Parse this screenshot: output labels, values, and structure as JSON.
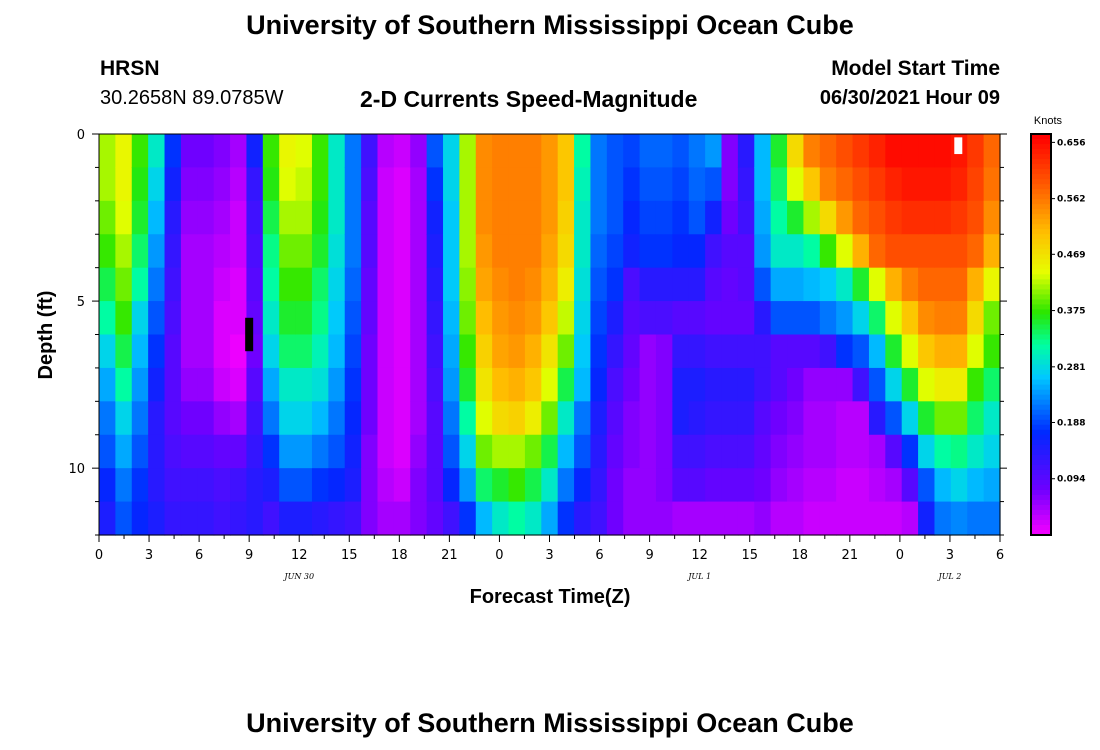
{
  "header": {
    "title": "University of Southern Mississippi Ocean Cube",
    "station": "HRSN",
    "coords": "30.2658N  89.0785W",
    "subtitle": "2-D Currents Speed-Magnitude",
    "model_label": "Model Start Time",
    "model_time": "06/30/2021 Hour 09"
  },
  "footer": {
    "title": "University of Southern Mississippi Ocean Cube"
  },
  "chart_data": {
    "type": "heatmap",
    "title": "2-D Currents Speed-Magnitude",
    "xlabel": "Forecast Time(Z)",
    "ylabel": "Depth (ft)",
    "x_hours": [
      0,
      54
    ],
    "x_tick_labels": [
      "0",
      "3",
      "6",
      "9",
      "12",
      "15",
      "18",
      "21",
      "0",
      "3",
      "6",
      "9",
      "12",
      "15",
      "18",
      "21",
      "0",
      "3",
      "6"
    ],
    "x_date_labels": [
      {
        "hour": 12,
        "text": "JUN 30"
      },
      {
        "hour": 36,
        "text": "JUL 1"
      },
      {
        "hour": 51,
        "text": "JUL 2"
      }
    ],
    "y_range_ft": [
      0,
      12
    ],
    "y_tick_labels": [
      "0",
      "5",
      "10"
    ],
    "colorbar": {
      "unit": "Knots",
      "min": 0.0,
      "max": 0.67,
      "labels": [
        "0.656",
        "0.562",
        "0.469",
        "0.375",
        "0.281",
        "0.188",
        "0.094"
      ]
    },
    "speed_knots_by_hour_top_to_bottom": [
      [
        0.42,
        0.42,
        0.4,
        0.38,
        0.35,
        0.32,
        0.28,
        0.25,
        0.22,
        0.2,
        0.17,
        0.15
      ],
      [
        0.45,
        0.45,
        0.44,
        0.42,
        0.4,
        0.38,
        0.35,
        0.32,
        0.28,
        0.25,
        0.22,
        0.2
      ],
      [
        0.38,
        0.37,
        0.36,
        0.34,
        0.32,
        0.28,
        0.26,
        0.24,
        0.22,
        0.2,
        0.18,
        0.17
      ],
      [
        0.3,
        0.28,
        0.26,
        0.24,
        0.22,
        0.2,
        0.18,
        0.16,
        0.14,
        0.14,
        0.14,
        0.15
      ],
      [
        0.18,
        0.16,
        0.14,
        0.13,
        0.12,
        0.11,
        0.1,
        0.1,
        0.1,
        0.11,
        0.12,
        0.13
      ],
      [
        0.08,
        0.07,
        0.06,
        0.05,
        0.05,
        0.05,
        0.05,
        0.06,
        0.08,
        0.1,
        0.12,
        0.13
      ],
      [
        0.08,
        0.07,
        0.06,
        0.05,
        0.05,
        0.05,
        0.05,
        0.06,
        0.08,
        0.1,
        0.12,
        0.13
      ],
      [
        0.07,
        0.06,
        0.05,
        0.04,
        0.03,
        0.02,
        0.02,
        0.03,
        0.06,
        0.09,
        0.11,
        0.12
      ],
      [
        0.05,
        0.04,
        0.03,
        0.03,
        0.02,
        0.02,
        0.01,
        0.02,
        0.05,
        0.09,
        0.12,
        0.13
      ],
      [
        0.16,
        0.13,
        0.12,
        0.11,
        0.1,
        0.09,
        0.08,
        0.1,
        0.12,
        0.13,
        0.14,
        0.14
      ],
      [
        0.38,
        0.37,
        0.35,
        0.33,
        0.32,
        0.3,
        0.28,
        0.25,
        0.22,
        0.18,
        0.15,
        0.12
      ],
      [
        0.45,
        0.44,
        0.42,
        0.4,
        0.38,
        0.36,
        0.34,
        0.3,
        0.28,
        0.24,
        0.2,
        0.15
      ],
      [
        0.44,
        0.43,
        0.42,
        0.4,
        0.38,
        0.36,
        0.34,
        0.3,
        0.28,
        0.24,
        0.2,
        0.15
      ],
      [
        0.38,
        0.38,
        0.37,
        0.36,
        0.34,
        0.33,
        0.31,
        0.29,
        0.26,
        0.22,
        0.18,
        0.14
      ],
      [
        0.3,
        0.3,
        0.3,
        0.29,
        0.28,
        0.27,
        0.26,
        0.24,
        0.22,
        0.2,
        0.17,
        0.13
      ],
      [
        0.22,
        0.22,
        0.22,
        0.22,
        0.21,
        0.2,
        0.19,
        0.18,
        0.17,
        0.16,
        0.15,
        0.12
      ],
      [
        0.12,
        0.11,
        0.1,
        0.1,
        0.09,
        0.09,
        0.08,
        0.08,
        0.08,
        0.07,
        0.07,
        0.07
      ],
      [
        0.04,
        0.03,
        0.03,
        0.03,
        0.03,
        0.03,
        0.03,
        0.03,
        0.03,
        0.03,
        0.04,
        0.05
      ],
      [
        0.03,
        0.02,
        0.02,
        0.02,
        0.02,
        0.02,
        0.02,
        0.02,
        0.02,
        0.02,
        0.03,
        0.05
      ],
      [
        0.06,
        0.05,
        0.05,
        0.05,
        0.05,
        0.05,
        0.05,
        0.05,
        0.05,
        0.06,
        0.07,
        0.07
      ],
      [
        0.2,
        0.18,
        0.16,
        0.15,
        0.14,
        0.13,
        0.12,
        0.11,
        0.1,
        0.1,
        0.1,
        0.09
      ],
      [
        0.28,
        0.28,
        0.27,
        0.27,
        0.27,
        0.26,
        0.25,
        0.24,
        0.22,
        0.2,
        0.17,
        0.12
      ],
      [
        0.42,
        0.42,
        0.42,
        0.42,
        0.41,
        0.4,
        0.38,
        0.36,
        0.32,
        0.28,
        0.24,
        0.18
      ],
      [
        0.55,
        0.55,
        0.55,
        0.54,
        0.53,
        0.51,
        0.49,
        0.47,
        0.44,
        0.4,
        0.34,
        0.26
      ],
      [
        0.56,
        0.56,
        0.56,
        0.56,
        0.55,
        0.54,
        0.53,
        0.51,
        0.48,
        0.42,
        0.36,
        0.3
      ],
      [
        0.56,
        0.56,
        0.56,
        0.56,
        0.56,
        0.55,
        0.54,
        0.52,
        0.49,
        0.42,
        0.38,
        0.32
      ],
      [
        0.56,
        0.56,
        0.56,
        0.56,
        0.55,
        0.54,
        0.52,
        0.5,
        0.46,
        0.4,
        0.35,
        0.3
      ],
      [
        0.54,
        0.54,
        0.54,
        0.53,
        0.52,
        0.5,
        0.47,
        0.44,
        0.4,
        0.35,
        0.3,
        0.25
      ],
      [
        0.5,
        0.5,
        0.49,
        0.48,
        0.46,
        0.43,
        0.4,
        0.35,
        0.3,
        0.26,
        0.22,
        0.18
      ],
      [
        0.32,
        0.31,
        0.3,
        0.3,
        0.29,
        0.28,
        0.27,
        0.26,
        0.22,
        0.2,
        0.17,
        0.14
      ],
      [
        0.22,
        0.22,
        0.22,
        0.21,
        0.2,
        0.19,
        0.18,
        0.17,
        0.15,
        0.14,
        0.13,
        0.12
      ],
      [
        0.2,
        0.2,
        0.2,
        0.19,
        0.18,
        0.15,
        0.13,
        0.11,
        0.1,
        0.09,
        0.08,
        0.08
      ],
      [
        0.19,
        0.18,
        0.17,
        0.16,
        0.11,
        0.1,
        0.09,
        0.08,
        0.07,
        0.07,
        0.06,
        0.06
      ],
      [
        0.21,
        0.2,
        0.19,
        0.18,
        0.14,
        0.11,
        0.06,
        0.06,
        0.06,
        0.06,
        0.06,
        0.06
      ],
      [
        0.21,
        0.2,
        0.19,
        0.18,
        0.14,
        0.11,
        0.07,
        0.07,
        0.07,
        0.07,
        0.07,
        0.06
      ],
      [
        0.2,
        0.19,
        0.18,
        0.17,
        0.14,
        0.1,
        0.13,
        0.15,
        0.15,
        0.12,
        0.1,
        0.05
      ],
      [
        0.22,
        0.21,
        0.2,
        0.17,
        0.14,
        0.1,
        0.13,
        0.15,
        0.14,
        0.12,
        0.1,
        0.05
      ],
      [
        0.24,
        0.2,
        0.16,
        0.12,
        0.1,
        0.09,
        0.12,
        0.14,
        0.13,
        0.11,
        0.09,
        0.05
      ],
      [
        0.07,
        0.07,
        0.08,
        0.1,
        0.09,
        0.09,
        0.12,
        0.14,
        0.13,
        0.11,
        0.09,
        0.05
      ],
      [
        0.14,
        0.13,
        0.12,
        0.1,
        0.1,
        0.09,
        0.12,
        0.14,
        0.13,
        0.11,
        0.09,
        0.05
      ],
      [
        0.26,
        0.26,
        0.25,
        0.24,
        0.2,
        0.14,
        0.12,
        0.12,
        0.1,
        0.09,
        0.08,
        0.06
      ],
      [
        0.36,
        0.34,
        0.32,
        0.3,
        0.25,
        0.2,
        0.1,
        0.1,
        0.08,
        0.07,
        0.06,
        0.04
      ],
      [
        0.48,
        0.44,
        0.36,
        0.3,
        0.25,
        0.2,
        0.1,
        0.08,
        0.07,
        0.06,
        0.05,
        0.04
      ],
      [
        0.56,
        0.5,
        0.42,
        0.32,
        0.26,
        0.2,
        0.1,
        0.06,
        0.05,
        0.05,
        0.04,
        0.03
      ],
      [
        0.58,
        0.56,
        0.48,
        0.38,
        0.27,
        0.22,
        0.12,
        0.06,
        0.05,
        0.05,
        0.04,
        0.03
      ],
      [
        0.6,
        0.58,
        0.54,
        0.44,
        0.3,
        0.24,
        0.18,
        0.06,
        0.04,
        0.04,
        0.03,
        0.03
      ],
      [
        0.62,
        0.6,
        0.58,
        0.52,
        0.36,
        0.28,
        0.2,
        0.12,
        0.04,
        0.04,
        0.03,
        0.03
      ],
      [
        0.64,
        0.62,
        0.6,
        0.58,
        0.44,
        0.34,
        0.26,
        0.2,
        0.14,
        0.05,
        0.04,
        0.03
      ],
      [
        0.66,
        0.64,
        0.62,
        0.6,
        0.52,
        0.44,
        0.36,
        0.28,
        0.2,
        0.1,
        0.05,
        0.03
      ],
      [
        0.66,
        0.65,
        0.63,
        0.6,
        0.56,
        0.5,
        0.44,
        0.36,
        0.28,
        0.18,
        0.1,
        0.04
      ],
      [
        0.66,
        0.65,
        0.63,
        0.6,
        0.58,
        0.55,
        0.5,
        0.44,
        0.36,
        0.28,
        0.2,
        0.16
      ],
      [
        0.66,
        0.65,
        0.63,
        0.6,
        0.58,
        0.56,
        0.52,
        0.46,
        0.4,
        0.32,
        0.26,
        0.22
      ],
      [
        0.65,
        0.64,
        0.62,
        0.6,
        0.58,
        0.56,
        0.52,
        0.46,
        0.4,
        0.33,
        0.28,
        0.23
      ],
      [
        0.62,
        0.61,
        0.6,
        0.58,
        0.52,
        0.48,
        0.44,
        0.38,
        0.34,
        0.3,
        0.26,
        0.22
      ],
      [
        0.58,
        0.57,
        0.55,
        0.52,
        0.45,
        0.4,
        0.38,
        0.34,
        0.3,
        0.28,
        0.25,
        0.22
      ]
    ],
    "markers": [
      {
        "name": "black-bar",
        "hour": 9,
        "depth_ft": [
          5.5,
          6.5
        ],
        "color": "#000000"
      },
      {
        "name": "white-bar",
        "hour": 51.5,
        "depth_ft": [
          0.1,
          0.6
        ],
        "color": "#ffffff"
      }
    ]
  }
}
